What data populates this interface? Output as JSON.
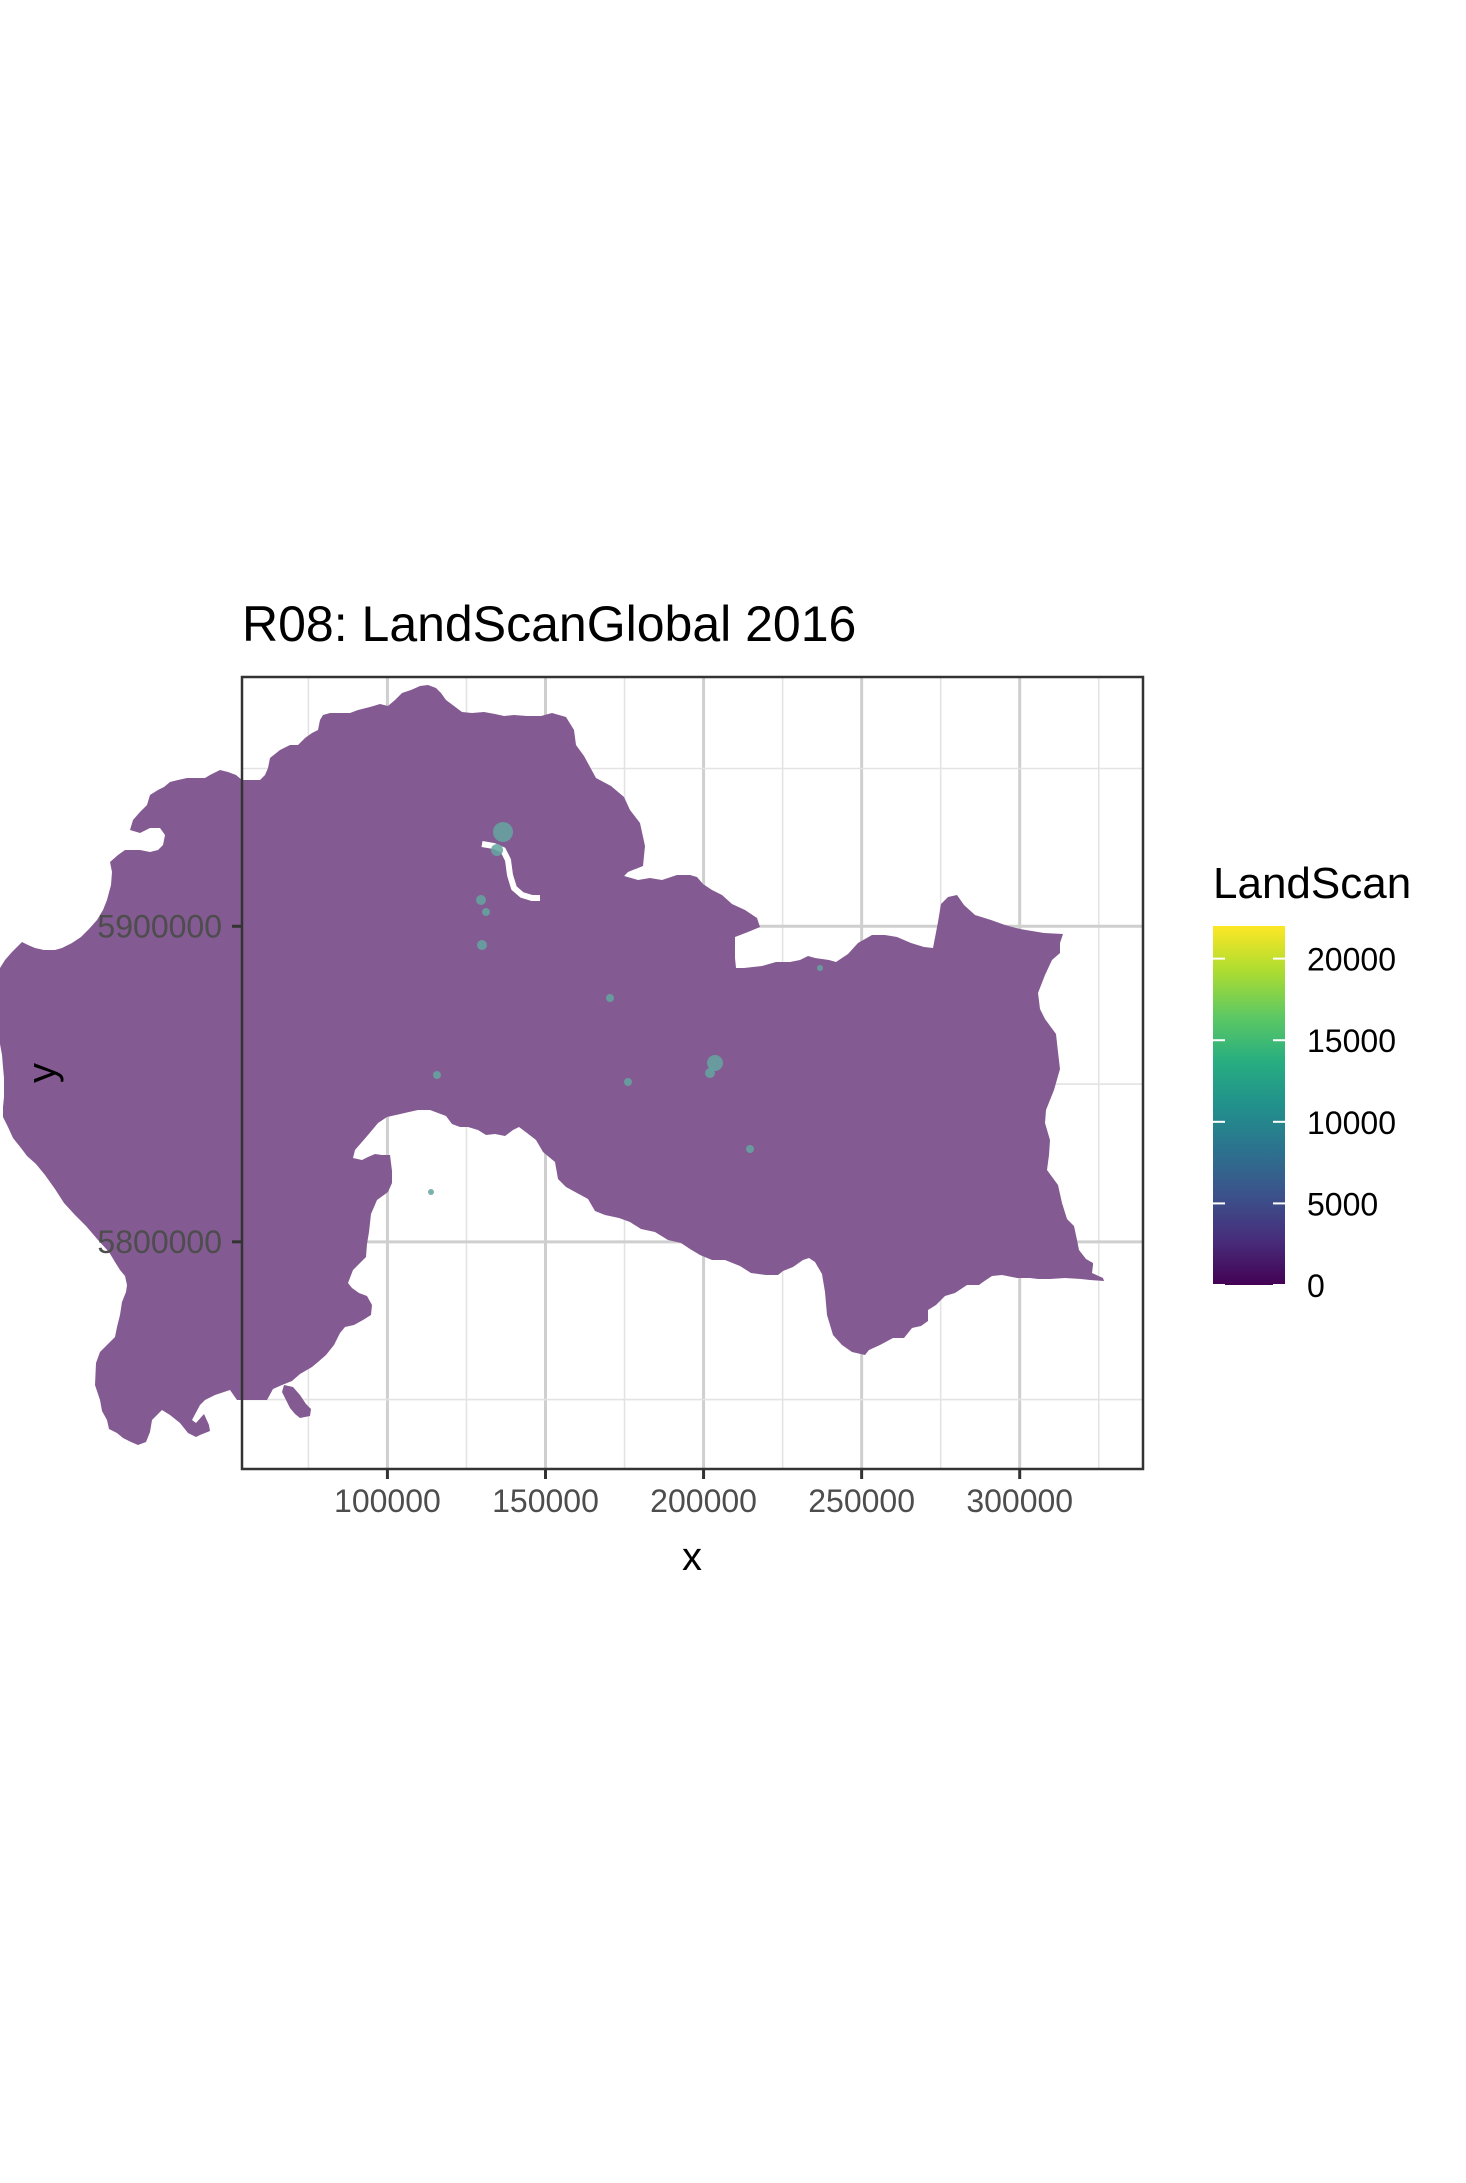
{
  "chart_data": {
    "type": "heatmap",
    "title": "R08: LandScanGlobal 2016",
    "xlabel": "x",
    "ylabel": "y",
    "xlim": [
      54000,
      339000
    ],
    "ylim": [
      5728000,
      5979000
    ],
    "x_ticks": [
      100000,
      150000,
      200000,
      250000,
      300000
    ],
    "x_tick_labels": [
      "100000",
      "150000",
      "200000",
      "250000",
      "300000"
    ],
    "y_ticks": [
      5800000,
      5900000
    ],
    "y_tick_labels": [
      "5800000",
      "5900000"
    ],
    "grid": true,
    "legend": {
      "title": "LandScan",
      "position": "right",
      "breaks": [
        0,
        5000,
        10000,
        15000,
        20000
      ],
      "labels": [
        "0",
        "5000",
        "10000",
        "15000",
        "20000"
      ],
      "max": 22000,
      "palette": "viridis"
    }
  },
  "colors": {
    "region_fill": "#845a92",
    "hotspot": "#63a6a0",
    "panel_border": "#333333",
    "background": "#ffffff"
  }
}
